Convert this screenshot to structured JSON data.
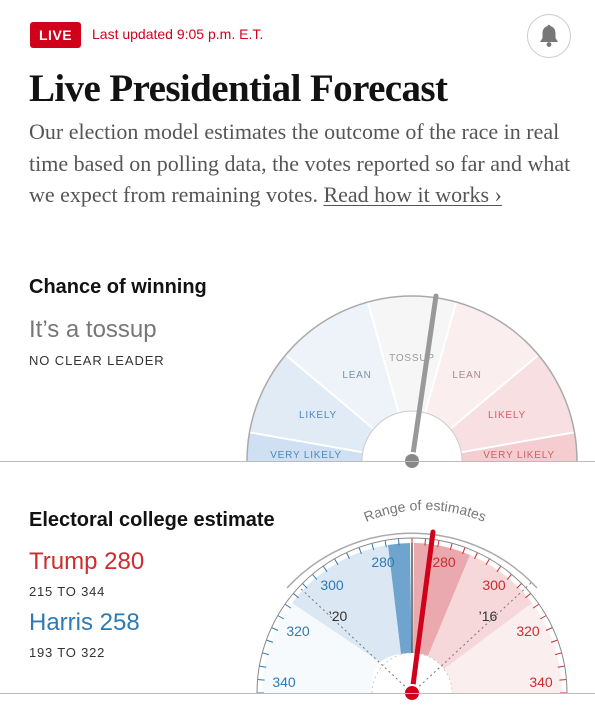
{
  "header": {
    "live_badge": "LIVE",
    "updated_text": "Last updated 9:05 p.m. E.T.",
    "bell_icon": "bell-icon"
  },
  "title": "Live Presidential Forecast",
  "description": {
    "text": "Our election model estimates the outcome of the race in real time based on polling data, the votes reported so far and what we expect from remaining votes. ",
    "link_text": "Read how it works ›"
  },
  "chance": {
    "heading": "Chance of winning",
    "status": "It’s a tossup",
    "status_sub": "NO CLEAR LEADER",
    "labels": {
      "very_likely": "VERY LIKELY",
      "likely": "LIKELY",
      "lean": "LEAN",
      "tossup": "TOSSUP"
    },
    "needle_position": 0.54,
    "colors": {
      "dem_strong": "#cfe0f2",
      "dem_mid": "#e1ebf6",
      "dem_light": "#eef3fa",
      "tossup": "#f6f6f6",
      "rep_light": "#fbeeef",
      "rep_mid": "#f8e0e2",
      "rep_strong": "#f5cdd0",
      "needle": "#999999",
      "dem_text": "#4f87bd",
      "rep_text": "#cf5e67"
    }
  },
  "electoral": {
    "heading": "Electoral college estimate",
    "trump": {
      "label": "Trump 280",
      "range": "215 TO 344",
      "color": "#cc2d2d"
    },
    "harris": {
      "label": "Harris 258",
      "range": "193 TO 322",
      "color": "#2f7ab3"
    },
    "range_label": "Range of estimates",
    "marker_2020": "’20",
    "marker_2016": "’16",
    "scale_labels": {
      "left": [
        "280",
        "300",
        "320",
        "340"
      ],
      "right": [
        "280",
        "300",
        "320",
        "340"
      ]
    },
    "needle_color": "#d0021b"
  }
}
